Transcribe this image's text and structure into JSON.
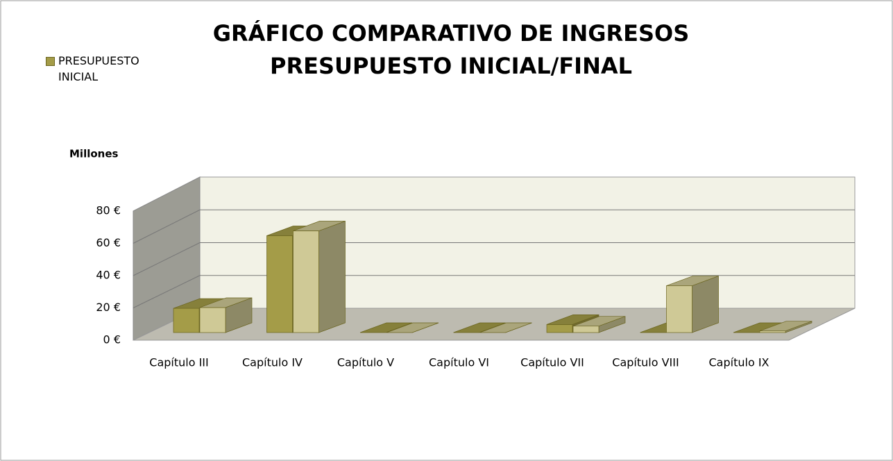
{
  "chart_data": {
    "type": "bar3d",
    "title": [
      "GRÁFICO COMPARATIVO DE INGRESOS",
      "PRESUPUESTO INICIAL/FINAL"
    ],
    "y_axis_label": "Millones",
    "categories": [
      "Capítulo III",
      "Capítulo IV",
      "Capítulo V",
      "Capítulo VI",
      "Capítulo VII",
      "Capítulo VIII",
      "Capítulo IX"
    ],
    "series": [
      {
        "name": "PRESUPUESTO INICIAL",
        "color": "#a49c48",
        "values": [
          15,
          60,
          0,
          0,
          5,
          0,
          0
        ]
      },
      {
        "color": "#cfc996",
        "values": [
          15.5,
          63,
          0,
          0,
          4,
          29,
          1
        ]
      }
    ],
    "ylim": [
      0,
      80
    ],
    "yticks": [
      {
        "value": 0,
        "label": "0 €"
      },
      {
        "value": 20,
        "label": "20 €"
      },
      {
        "value": 40,
        "label": "40 €"
      },
      {
        "value": 60,
        "label": "60 €"
      },
      {
        "value": 80,
        "label": "80 €"
      }
    ],
    "grid": true,
    "legend": "top-left"
  }
}
